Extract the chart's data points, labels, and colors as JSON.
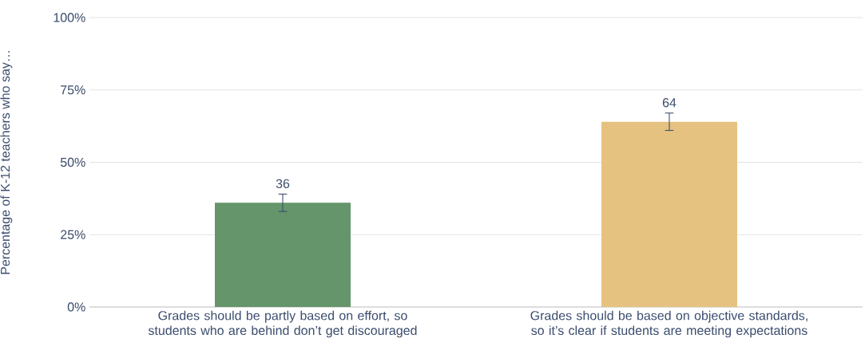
{
  "chart_data": {
    "type": "bar",
    "ylabel": "Percentage of K-12 teachers who say…",
    "categories": [
      "Grades should be partly based on effort, so students who are behind don’t get discouraged",
      "Grades should be based on objective standards, so it’s clear if students are meeting expectations"
    ],
    "values": [
      36,
      64
    ],
    "errors": [
      3,
      3
    ],
    "colors": [
      "#65956b",
      "#e6c281"
    ],
    "data_labels": true,
    "ylim": [
      0,
      100
    ],
    "yticks": [
      {
        "value": 0,
        "label": "0%"
      },
      {
        "value": 25,
        "label": "25%"
      },
      {
        "value": 50,
        "label": "50%"
      },
      {
        "value": 75,
        "label": "75%"
      },
      {
        "value": 100,
        "label": "100%"
      }
    ],
    "grid": "y"
  }
}
